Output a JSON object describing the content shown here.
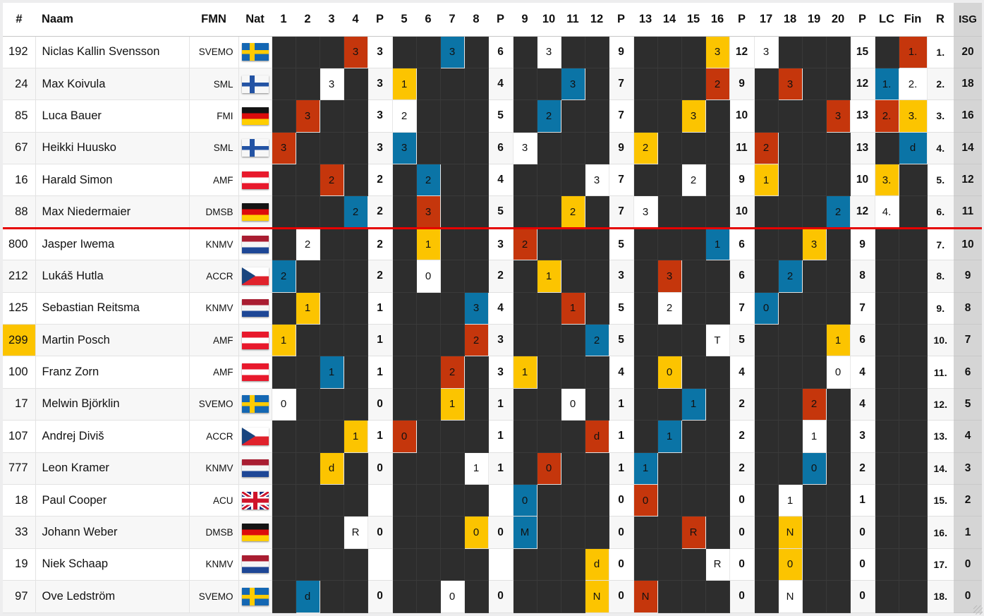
{
  "header": {
    "num": "#",
    "name": "Naam",
    "fmn": "FMN",
    "nat": "Nat",
    "points": "P",
    "lc": "LC",
    "fin": "Fin",
    "rank": "R",
    "isg": "ISG",
    "heat_numbers": [
      "1",
      "2",
      "3",
      "4",
      "5",
      "6",
      "7",
      "8",
      "9",
      "10",
      "11",
      "12",
      "13",
      "14",
      "15",
      "16",
      "17",
      "18",
      "19",
      "20"
    ]
  },
  "column_sequence": [
    "1",
    "2",
    "3",
    "4",
    "P",
    "5",
    "6",
    "7",
    "8",
    "P",
    "9",
    "10",
    "11",
    "12",
    "P",
    "13",
    "14",
    "15",
    "16",
    "P",
    "17",
    "18",
    "19",
    "20",
    "P",
    "LC",
    "Fin",
    "R",
    "ISG"
  ],
  "colors": {
    "dark": "#2d2d2d",
    "blue": "#0b74a6",
    "red": "#c5360c",
    "yellow": "#fcc400",
    "white": "#ffffff",
    "isg_bg": "#d5d5d5",
    "cut_line": "#e60000",
    "row_alt": "#f7f7f7"
  },
  "divider_after_row": 6,
  "riders": [
    {
      "num": "192",
      "highlight": false,
      "name": "Niclas Kallin Svensson",
      "fmn": "SVEMO",
      "nat": "se",
      "heats": {
        "4": {
          "c": "red",
          "v": "3"
        },
        "7": {
          "c": "blue",
          "v": "3"
        },
        "10": {
          "c": "white",
          "v": "3"
        },
        "16": {
          "c": "yellow",
          "v": "3"
        },
        "17": {
          "c": "white",
          "v": "3"
        }
      },
      "p": [
        "3",
        "6",
        "9",
        "12",
        "15"
      ],
      "lc": null,
      "fin": {
        "c": "red",
        "v": "1."
      },
      "r": "1.",
      "isg": "20"
    },
    {
      "num": "24",
      "highlight": false,
      "name": "Max Koivula",
      "fmn": "SML",
      "nat": "fi",
      "heats": {
        "3": {
          "c": "white",
          "v": "3"
        },
        "5": {
          "c": "yellow",
          "v": "1"
        },
        "11": {
          "c": "blue",
          "v": "3"
        },
        "16": {
          "c": "red",
          "v": "2"
        },
        "18": {
          "c": "red",
          "v": "3"
        }
      },
      "p": [
        "3",
        "4",
        "7",
        "9",
        "12"
      ],
      "lc": {
        "c": "blue",
        "v": "1."
      },
      "fin": {
        "c": "white",
        "v": "2."
      },
      "r": "2.",
      "isg": "18"
    },
    {
      "num": "85",
      "highlight": false,
      "name": "Luca Bauer",
      "fmn": "FMI",
      "nat": "de",
      "heats": {
        "2": {
          "c": "red",
          "v": "3"
        },
        "5": {
          "c": "white",
          "v": "2"
        },
        "10": {
          "c": "blue",
          "v": "2"
        },
        "15": {
          "c": "yellow",
          "v": "3"
        },
        "20": {
          "c": "red",
          "v": "3"
        }
      },
      "p": [
        "3",
        "5",
        "7",
        "10",
        "13"
      ],
      "lc": {
        "c": "red",
        "v": "2."
      },
      "fin": {
        "c": "yellow",
        "v": "3."
      },
      "r": "3.",
      "isg": "16"
    },
    {
      "num": "67",
      "highlight": false,
      "name": "Heikki Huusko",
      "fmn": "SML",
      "nat": "fi",
      "heats": {
        "1": {
          "c": "red",
          "v": "3"
        },
        "5": {
          "c": "blue",
          "v": "3"
        },
        "9": {
          "c": "white",
          "v": "3"
        },
        "13": {
          "c": "yellow",
          "v": "2"
        },
        "17": {
          "c": "red",
          "v": "2"
        }
      },
      "p": [
        "3",
        "6",
        "9",
        "11",
        "13"
      ],
      "lc": null,
      "fin": {
        "c": "blue",
        "v": "d"
      },
      "r": "4.",
      "isg": "14"
    },
    {
      "num": "16",
      "highlight": false,
      "name": "Harald Simon",
      "fmn": "AMF",
      "nat": "at",
      "heats": {
        "3": {
          "c": "red",
          "v": "2"
        },
        "6": {
          "c": "blue",
          "v": "2"
        },
        "12": {
          "c": "white",
          "v": "3"
        },
        "15": {
          "c": "white",
          "v": "2"
        },
        "17": {
          "c": "yellow",
          "v": "1"
        }
      },
      "p": [
        "2",
        "4",
        "7",
        "9",
        "10"
      ],
      "lc": {
        "c": "yellow",
        "v": "3."
      },
      "fin": null,
      "r": "5.",
      "isg": "12"
    },
    {
      "num": "88",
      "highlight": false,
      "name": "Max Niedermaier",
      "fmn": "DMSB",
      "nat": "de",
      "heats": {
        "4": {
          "c": "blue",
          "v": "2"
        },
        "6": {
          "c": "red",
          "v": "3"
        },
        "11": {
          "c": "yellow",
          "v": "2"
        },
        "13": {
          "c": "white",
          "v": "3"
        },
        "20": {
          "c": "blue",
          "v": "2"
        }
      },
      "p": [
        "2",
        "5",
        "7",
        "10",
        "12"
      ],
      "lc": {
        "c": "white",
        "v": "4."
      },
      "fin": null,
      "r": "6.",
      "isg": "11"
    },
    {
      "num": "800",
      "highlight": false,
      "name": "Jasper Iwema",
      "fmn": "KNMV",
      "nat": "nl",
      "heats": {
        "2": {
          "c": "white",
          "v": "2"
        },
        "6": {
          "c": "yellow",
          "v": "1"
        },
        "9": {
          "c": "red",
          "v": "2"
        },
        "16": {
          "c": "blue",
          "v": "1"
        },
        "19": {
          "c": "yellow",
          "v": "3"
        }
      },
      "p": [
        "2",
        "3",
        "5",
        "6",
        "9"
      ],
      "lc": null,
      "fin": null,
      "r": "7.",
      "isg": "10"
    },
    {
      "num": "212",
      "highlight": false,
      "name": "Lukáš Hutla",
      "fmn": "ACCR",
      "nat": "cz",
      "heats": {
        "1": {
          "c": "blue",
          "v": "2"
        },
        "6": {
          "c": "white",
          "v": "0"
        },
        "10": {
          "c": "yellow",
          "v": "1"
        },
        "14": {
          "c": "red",
          "v": "3"
        },
        "18": {
          "c": "blue",
          "v": "2"
        }
      },
      "p": [
        "2",
        "2",
        "3",
        "6",
        "8"
      ],
      "lc": null,
      "fin": null,
      "r": "8.",
      "isg": "9"
    },
    {
      "num": "125",
      "highlight": false,
      "name": "Sebastian Reitsma",
      "fmn": "KNMV",
      "nat": "nl",
      "heats": {
        "2": {
          "c": "yellow",
          "v": "1"
        },
        "8": {
          "c": "blue",
          "v": "3"
        },
        "11": {
          "c": "red",
          "v": "1"
        },
        "14": {
          "c": "white",
          "v": "2"
        },
        "17": {
          "c": "blue",
          "v": "0"
        }
      },
      "p": [
        "1",
        "4",
        "5",
        "7",
        "7"
      ],
      "lc": null,
      "fin": null,
      "r": "9.",
      "isg": "8"
    },
    {
      "num": "299",
      "highlight": true,
      "name": "Martin Posch",
      "fmn": "AMF",
      "nat": "at",
      "heats": {
        "1": {
          "c": "yellow",
          "v": "1"
        },
        "8": {
          "c": "red",
          "v": "2"
        },
        "12": {
          "c": "blue",
          "v": "2"
        },
        "16": {
          "c": "white",
          "v": "T"
        },
        "20": {
          "c": "yellow",
          "v": "1"
        }
      },
      "p": [
        "1",
        "3",
        "5",
        "5",
        "6"
      ],
      "lc": null,
      "fin": null,
      "r": "10.",
      "isg": "7"
    },
    {
      "num": "100",
      "highlight": false,
      "name": "Franz Zorn",
      "fmn": "AMF",
      "nat": "at",
      "heats": {
        "3": {
          "c": "blue",
          "v": "1"
        },
        "7": {
          "c": "red",
          "v": "2"
        },
        "9": {
          "c": "yellow",
          "v": "1"
        },
        "14": {
          "c": "yellow",
          "v": "0"
        },
        "20": {
          "c": "white",
          "v": "0"
        }
      },
      "p": [
        "1",
        "3",
        "4",
        "4",
        "4"
      ],
      "lc": null,
      "fin": null,
      "r": "11.",
      "isg": "6"
    },
    {
      "num": "17",
      "highlight": false,
      "name": "Melwin Björklin",
      "fmn": "SVEMO",
      "nat": "se",
      "heats": {
        "1": {
          "c": "white",
          "v": "0"
        },
        "7": {
          "c": "yellow",
          "v": "1"
        },
        "11": {
          "c": "white",
          "v": "0"
        },
        "15": {
          "c": "blue",
          "v": "1"
        },
        "19": {
          "c": "red",
          "v": "2"
        }
      },
      "p": [
        "0",
        "1",
        "1",
        "2",
        "4"
      ],
      "lc": null,
      "fin": null,
      "r": "12.",
      "isg": "5"
    },
    {
      "num": "107",
      "highlight": false,
      "name": "Andrej Diviš",
      "fmn": "ACCR",
      "nat": "cz",
      "heats": {
        "4": {
          "c": "yellow",
          "v": "1"
        },
        "5": {
          "c": "red",
          "v": "0"
        },
        "12": {
          "c": "red",
          "v": "d"
        },
        "14": {
          "c": "blue",
          "v": "1"
        },
        "19": {
          "c": "white",
          "v": "1"
        }
      },
      "p": [
        "1",
        "1",
        "1",
        "2",
        "3"
      ],
      "lc": null,
      "fin": null,
      "r": "13.",
      "isg": "4"
    },
    {
      "num": "777",
      "highlight": false,
      "name": "Leon Kramer",
      "fmn": "KNMV",
      "nat": "nl",
      "heats": {
        "3": {
          "c": "yellow",
          "v": "d"
        },
        "8": {
          "c": "white",
          "v": "1"
        },
        "10": {
          "c": "red",
          "v": "0"
        },
        "13": {
          "c": "blue",
          "v": "1"
        },
        "19": {
          "c": "blue",
          "v": "0"
        }
      },
      "p": [
        "0",
        "1",
        "1",
        "2",
        "2"
      ],
      "lc": null,
      "fin": null,
      "r": "14.",
      "isg": "3"
    },
    {
      "num": "18",
      "highlight": false,
      "name": "Paul Cooper",
      "fmn": "ACU",
      "nat": "gb",
      "heats": {
        "9": {
          "c": "blue",
          "v": "0"
        },
        "13": {
          "c": "red",
          "v": "0"
        },
        "18": {
          "c": "white",
          "v": "1"
        }
      },
      "p": [
        "",
        "",
        "0",
        "0",
        "1"
      ],
      "lc": null,
      "fin": null,
      "r": "15.",
      "isg": "2"
    },
    {
      "num": "33",
      "highlight": false,
      "name": "Johann Weber",
      "fmn": "DMSB",
      "nat": "de",
      "heats": {
        "4": {
          "c": "white",
          "v": "R"
        },
        "8": {
          "c": "yellow",
          "v": "0"
        },
        "9": {
          "c": "blue",
          "v": "M"
        },
        "15": {
          "c": "red",
          "v": "R"
        },
        "18": {
          "c": "yellow",
          "v": "N"
        }
      },
      "p": [
        "0",
        "0",
        "0",
        "0",
        "0"
      ],
      "lc": null,
      "fin": null,
      "r": "16.",
      "isg": "1"
    },
    {
      "num": "19",
      "highlight": false,
      "name": "Niek Schaap",
      "fmn": "KNMV",
      "nat": "nl",
      "heats": {
        "12": {
          "c": "yellow",
          "v": "d"
        },
        "16": {
          "c": "white",
          "v": "R"
        },
        "18": {
          "c": "yellow",
          "v": "0"
        }
      },
      "p": [
        "",
        "",
        "0",
        "0",
        "0"
      ],
      "lc": null,
      "fin": null,
      "r": "17.",
      "isg": "0"
    },
    {
      "num": "97",
      "highlight": false,
      "name": "Ove Ledström",
      "fmn": "SVEMO",
      "nat": "se",
      "heats": {
        "2": {
          "c": "blue",
          "v": "d"
        },
        "7": {
          "c": "white",
          "v": "0"
        },
        "12": {
          "c": "yellow",
          "v": "N"
        },
        "13": {
          "c": "red",
          "v": "N"
        },
        "18": {
          "c": "white",
          "v": "N"
        }
      },
      "p": [
        "0",
        "0",
        "0",
        "0",
        "0"
      ],
      "lc": null,
      "fin": null,
      "r": "18.",
      "isg": "0"
    }
  ]
}
